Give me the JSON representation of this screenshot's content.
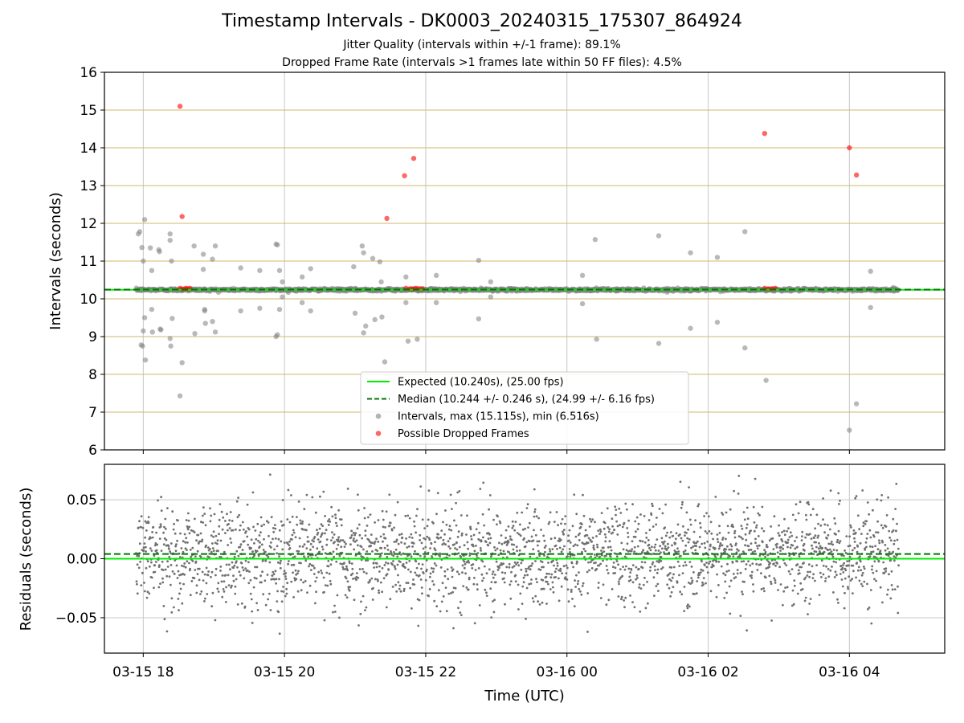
{
  "figure": {
    "title": "Timestamp Intervals - DK0003_20240315_175307_864924",
    "subtitle_1": "Jitter Quality (intervals within +/-1 frame): 89.1%",
    "subtitle_2": "Dropped Frame Rate (intervals >1 frames late within 50 FF files): 4.5%",
    "x_label": "Time (UTC)",
    "x_ticks": [
      "03-15 18",
      "03-15 20",
      "03-15 22",
      "03-16 00",
      "03-16 02",
      "03-16 04"
    ]
  },
  "chart_data": [
    {
      "type": "scatter",
      "name": "intervals",
      "ylabel": "Intervals (seconds)",
      "ylim": [
        6,
        16
      ],
      "y_ticks": [
        "6",
        "7",
        "8",
        "9",
        "10",
        "11",
        "12",
        "13",
        "14",
        "15",
        "16"
      ],
      "xlim_hours": [
        17.45,
        29.35
      ],
      "grid": true,
      "legend_position": "lower-center",
      "reference_lines": [
        {
          "label": "Expected (10.240s), (25.00 fps)",
          "value": 10.24,
          "style": "solid",
          "color": "#00ee00"
        },
        {
          "label": "Median (10.244 +/- 0.246 s), (24.99 +/- 6.16 fps)",
          "value": 10.244,
          "style": "dashed",
          "color": "#007700"
        }
      ],
      "series": [
        {
          "name": "Intervals, max (15.115s), min (6.516s)",
          "color": "#808080",
          "baseline_band": {
            "from_hour": 17.9,
            "to_hour": 28.7,
            "center": 10.24
          },
          "outliers": [
            [
              17.93,
              11.72
            ],
            [
              17.95,
              11.78
            ],
            [
              17.98,
              11.36
            ],
            [
              17.97,
              8.78
            ],
            [
              17.99,
              8.75
            ],
            [
              18.0,
              11.0
            ],
            [
              18.0,
              9.15
            ],
            [
              18.02,
              12.1
            ],
            [
              18.02,
              9.5
            ],
            [
              18.03,
              8.38
            ],
            [
              18.1,
              11.35
            ],
            [
              18.12,
              10.75
            ],
            [
              18.12,
              9.72
            ],
            [
              18.13,
              9.12
            ],
            [
              18.22,
              11.3
            ],
            [
              18.23,
              11.25
            ],
            [
              18.25,
              9.18
            ],
            [
              18.24,
              9.2
            ],
            [
              18.38,
              11.72
            ],
            [
              18.38,
              11.55
            ],
            [
              18.38,
              8.95
            ],
            [
              18.39,
              8.75
            ],
            [
              18.4,
              11.0
            ],
            [
              18.41,
              9.48
            ],
            [
              18.52,
              7.43
            ],
            [
              18.55,
              8.31
            ],
            [
              18.72,
              11.4
            ],
            [
              18.73,
              9.08
            ],
            [
              18.85,
              11.18
            ],
            [
              18.85,
              10.78
            ],
            [
              18.87,
              9.72
            ],
            [
              18.87,
              9.68
            ],
            [
              18.88,
              9.35
            ],
            [
              18.98,
              11.05
            ],
            [
              18.98,
              9.4
            ],
            [
              19.02,
              11.4
            ],
            [
              19.02,
              9.12
            ],
            [
              19.38,
              10.82
            ],
            [
              19.38,
              9.68
            ],
            [
              19.65,
              10.75
            ],
            [
              19.65,
              9.75
            ],
            [
              19.88,
              11.45
            ],
            [
              19.9,
              11.43
            ],
            [
              19.9,
              9.05
            ],
            [
              19.88,
              9.0
            ],
            [
              19.93,
              10.75
            ],
            [
              19.93,
              9.72
            ],
            [
              19.97,
              10.05
            ],
            [
              19.97,
              10.45
            ],
            [
              20.25,
              10.58
            ],
            [
              20.25,
              9.9
            ],
            [
              20.37,
              10.8
            ],
            [
              20.37,
              9.68
            ],
            [
              20.98,
              10.85
            ],
            [
              21.0,
              9.62
            ],
            [
              21.1,
              11.4
            ],
            [
              21.12,
              11.22
            ],
            [
              21.12,
              9.1
            ],
            [
              21.15,
              9.28
            ],
            [
              21.25,
              11.07
            ],
            [
              21.28,
              9.45
            ],
            [
              21.35,
              10.98
            ],
            [
              21.37,
              10.45
            ],
            [
              21.38,
              9.52
            ],
            [
              21.42,
              8.33
            ],
            [
              21.72,
              10.58
            ],
            [
              21.72,
              9.9
            ],
            [
              21.75,
              8.88
            ],
            [
              21.88,
              8.93
            ],
            [
              22.15,
              10.62
            ],
            [
              22.15,
              9.9
            ],
            [
              22.75,
              11.02
            ],
            [
              22.75,
              9.47
            ],
            [
              22.92,
              10.45
            ],
            [
              22.92,
              10.05
            ],
            [
              24.22,
              10.62
            ],
            [
              24.22,
              9.87
            ],
            [
              24.4,
              11.57
            ],
            [
              24.42,
              8.93
            ],
            [
              25.3,
              11.67
            ],
            [
              25.3,
              8.82
            ],
            [
              25.75,
              11.22
            ],
            [
              25.75,
              9.22
            ],
            [
              26.13,
              11.1
            ],
            [
              26.13,
              9.38
            ],
            [
              26.52,
              11.78
            ],
            [
              26.52,
              8.7
            ],
            [
              26.82,
              7.84
            ],
            [
              28.0,
              6.52
            ],
            [
              28.1,
              7.22
            ],
            [
              28.3,
              10.73
            ],
            [
              28.3,
              9.77
            ]
          ]
        },
        {
          "name": "Possible Dropped Frames",
          "color": "#ff0000",
          "points": [
            [
              18.52,
              15.1
            ],
            [
              18.55,
              12.18
            ],
            [
              18.52,
              10.28
            ],
            [
              18.56,
              10.26
            ],
            [
              18.6,
              10.28
            ],
            [
              18.63,
              10.27
            ],
            [
              18.66,
              10.28
            ],
            [
              21.7,
              13.26
            ],
            [
              21.83,
              13.72
            ],
            [
              21.45,
              12.13
            ],
            [
              21.72,
              10.28
            ],
            [
              21.78,
              10.27
            ],
            [
              21.82,
              10.26
            ],
            [
              21.86,
              10.28
            ],
            [
              21.9,
              10.27
            ],
            [
              21.95,
              10.27
            ],
            [
              26.8,
              14.38
            ],
            [
              26.8,
              10.28
            ],
            [
              26.85,
              10.26
            ],
            [
              26.9,
              10.27
            ],
            [
              26.95,
              10.28
            ],
            [
              28.0,
              14.0
            ],
            [
              28.1,
              13.28
            ]
          ]
        }
      ]
    },
    {
      "type": "scatter",
      "name": "residuals",
      "ylabel": "Residuals (seconds)",
      "ylim": [
        -0.08,
        0.08
      ],
      "y_ticks": [
        "−0.05",
        "0.00",
        "0.05"
      ],
      "xlim_hours": [
        17.45,
        29.35
      ],
      "grid": true,
      "reference_lines": [
        {
          "value": 0.0,
          "style": "solid",
          "color": "#00ee00"
        },
        {
          "value": 0.004,
          "style": "dashed",
          "color": "#007700"
        }
      ],
      "series": [
        {
          "name": "residuals",
          "color": "#707070",
          "span_hours": [
            17.9,
            28.7
          ],
          "count": 2600,
          "std": 0.021,
          "clip": 0.075
        }
      ]
    }
  ]
}
